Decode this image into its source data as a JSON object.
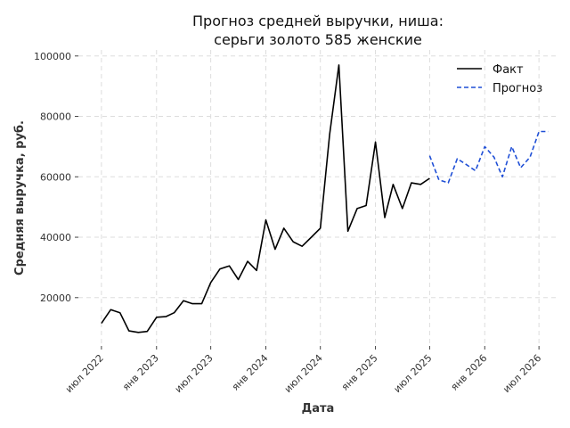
{
  "chart_data": {
    "type": "line",
    "title_lines": [
      "Прогноз средней выручки, ниша:",
      "серьги золото 585 женские"
    ],
    "xlabel": "Дата",
    "ylabel": "Средняя выручка, руб.",
    "ylim": [
      4000,
      102000
    ],
    "yticks": [
      20000,
      40000,
      60000,
      80000,
      100000
    ],
    "ytick_labels": [
      "20000",
      "40000",
      "60000",
      "80000",
      "100000"
    ],
    "x_range": [
      "2022-04-15",
      "2026-09-01"
    ],
    "xticks": [
      "2022-07-01",
      "2023-01-01",
      "2023-07-01",
      "2024-01-01",
      "2024-07-01",
      "2025-01-01",
      "2025-07-01",
      "2026-01-01",
      "2026-07-01"
    ],
    "xtick_labels": [
      "июл 2022",
      "янв 2023",
      "июл 2023",
      "янв 2024",
      "июл 2024",
      "янв 2025",
      "июл 2025",
      "янв 2026",
      "июл 2026"
    ],
    "grid": true,
    "legend_position": "top-right",
    "series": [
      {
        "name": "Факт",
        "color": "#000000",
        "style": "solid",
        "x": [
          "2022-07-01",
          "2022-08-01",
          "2022-09-01",
          "2022-10-01",
          "2022-11-01",
          "2022-12-01",
          "2023-01-01",
          "2023-02-01",
          "2023-03-01",
          "2023-04-01",
          "2023-05-01",
          "2023-06-01",
          "2023-07-01",
          "2023-08-01",
          "2023-09-01",
          "2023-10-01",
          "2023-11-01",
          "2023-12-01",
          "2024-01-01",
          "2024-02-01",
          "2024-03-01",
          "2024-04-01",
          "2024-05-01",
          "2024-06-01",
          "2024-07-01",
          "2024-08-01",
          "2024-09-01",
          "2024-10-01",
          "2024-11-01",
          "2024-12-01",
          "2025-01-01",
          "2025-02-01",
          "2025-03-01",
          "2025-04-01",
          "2025-05-01",
          "2025-06-01",
          "2025-07-01"
        ],
        "y": [
          11500,
          16000,
          15000,
          9000,
          8500,
          8800,
          13500,
          13700,
          15000,
          19000,
          18000,
          18000,
          25000,
          29500,
          30500,
          26000,
          32000,
          29000,
          45700,
          36000,
          43000,
          38500,
          37000,
          40000,
          43000,
          74000,
          97000,
          42000,
          49500,
          50500,
          71500,
          46500,
          57500,
          49500,
          58000,
          57500,
          59500
        ]
      },
      {
        "name": "Прогноз",
        "color": "#1f4fd6",
        "style": "dashed",
        "x": [
          "2025-07-01",
          "2025-08-01",
          "2025-09-01",
          "2025-10-01",
          "2025-11-01",
          "2025-12-01",
          "2026-01-01",
          "2026-02-01",
          "2026-03-01",
          "2026-04-01",
          "2026-05-01",
          "2026-06-01",
          "2026-07-01",
          "2026-08-01"
        ],
        "y": [
          67000,
          59000,
          58000,
          66000,
          64000,
          62000,
          70000,
          66500,
          60000,
          70000,
          63000,
          66500,
          75000,
          75000
        ]
      }
    ]
  }
}
